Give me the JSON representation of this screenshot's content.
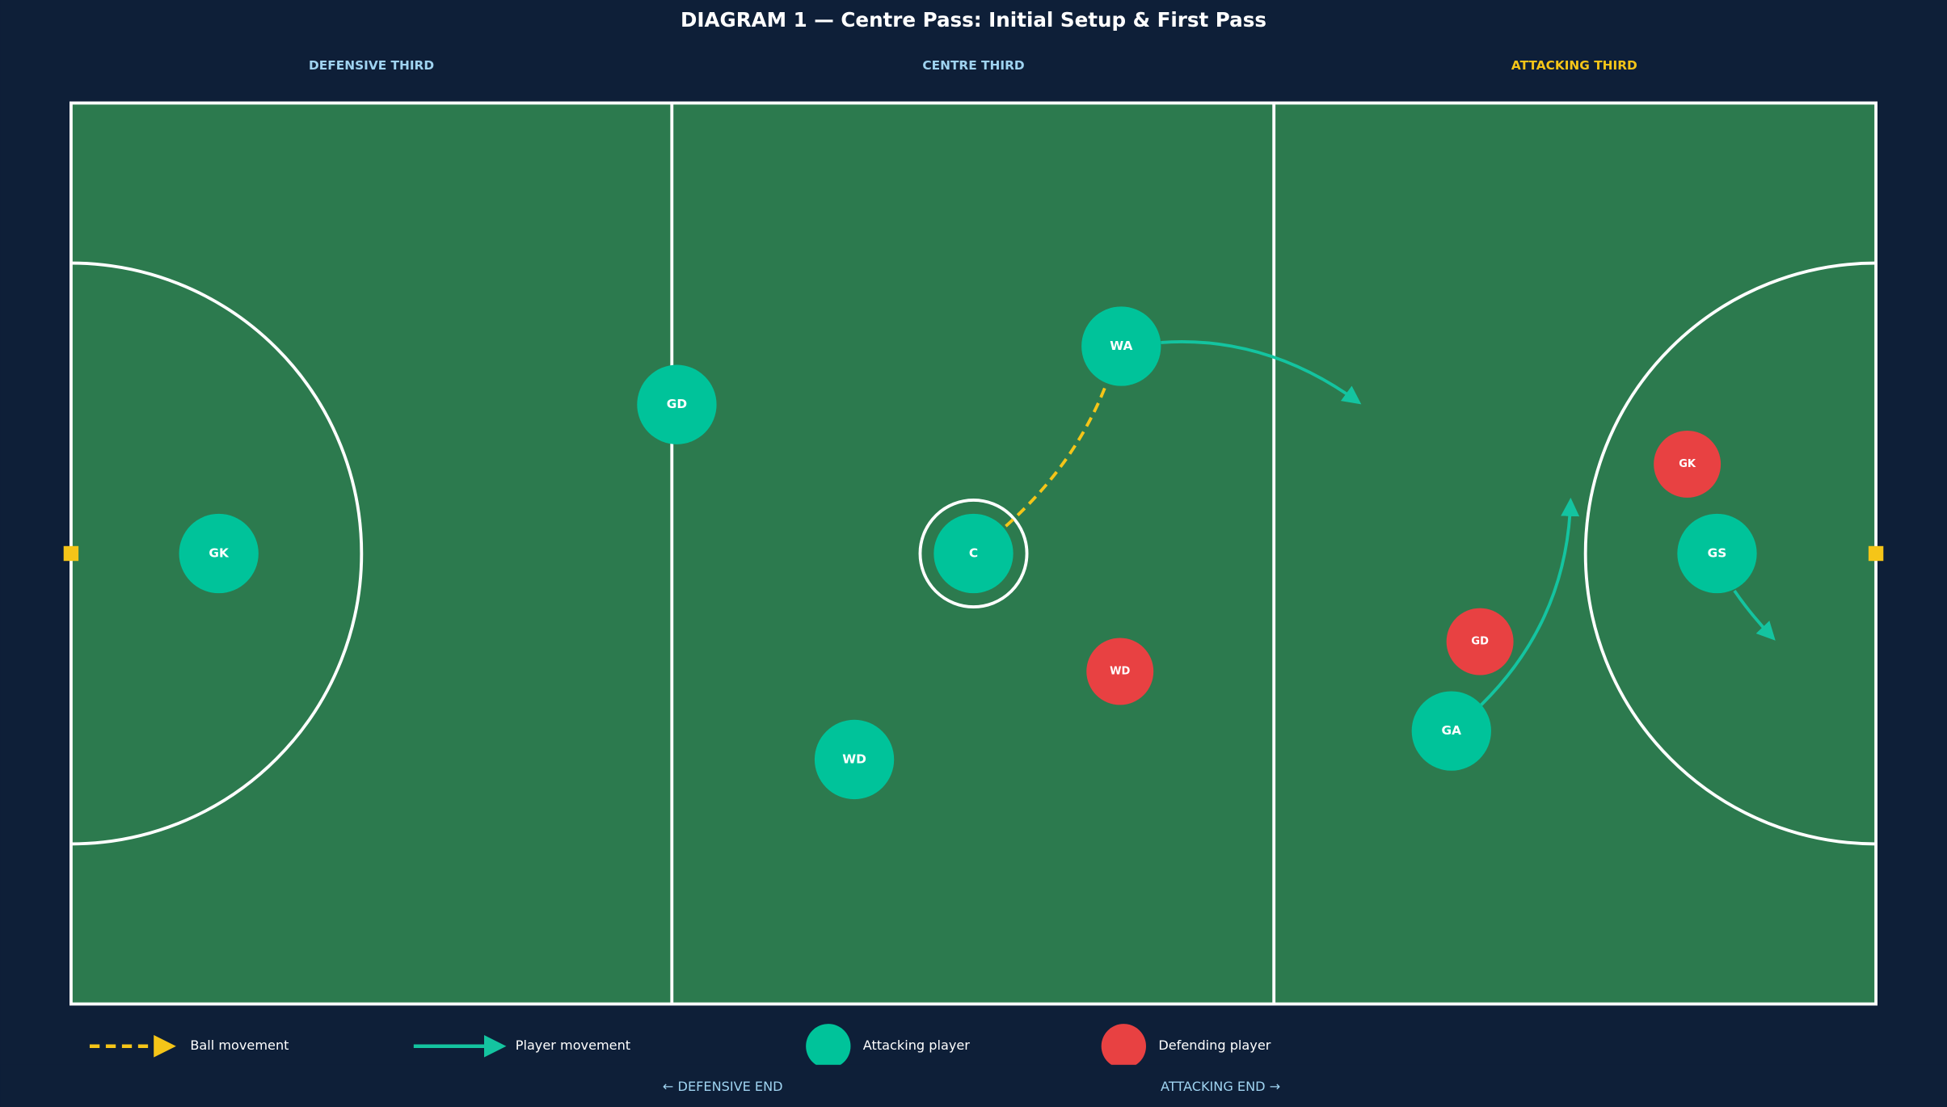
{
  "title": "DIAGRAM 1 — Centre Pass: Initial Setup & First Pass",
  "zones": [
    "DEFENSIVE THIRD",
    "CENTRE THIRD",
    "ATTACKING THIRD"
  ],
  "attacking_players": [
    "GK",
    "GD",
    "WA",
    "C",
    "WD",
    "GA",
    "GS"
  ],
  "defending_players": [
    "GK",
    "WD",
    "GD"
  ],
  "legend": [
    "Ball movement",
    "Player movement",
    "Attacking player",
    "Defending player"
  ],
  "ends": [
    "← DEFENSIVE END",
    "ATTACKING END →"
  ]
}
